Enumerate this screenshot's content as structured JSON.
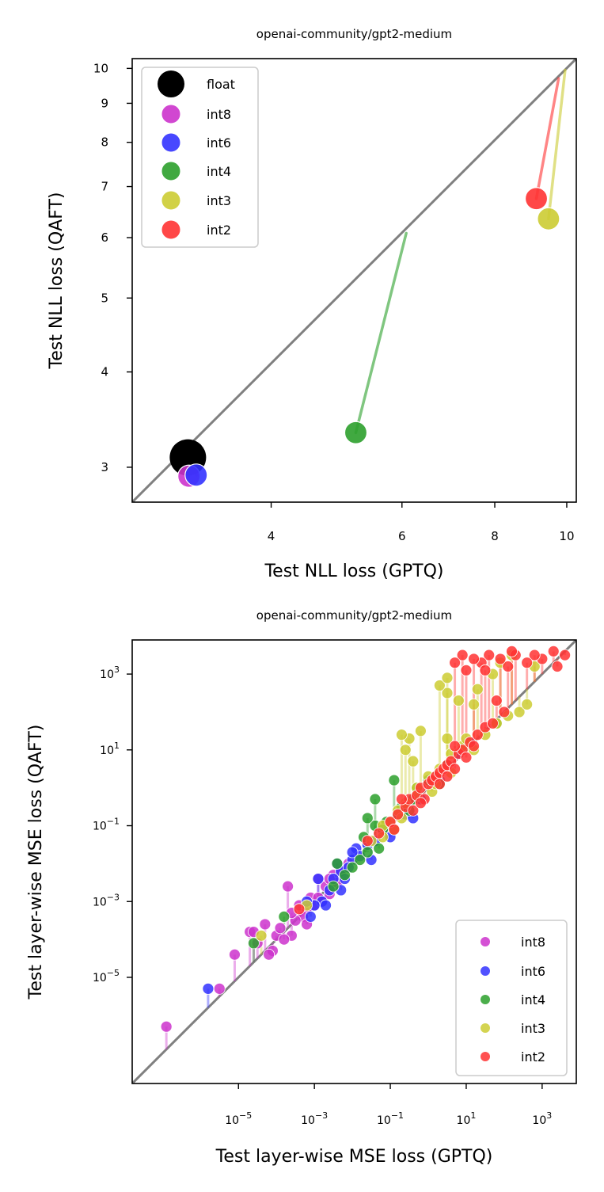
{
  "chart_data": [
    {
      "type": "scatter",
      "title": "openai-community/gpt2-medium",
      "xlabel": "Test NLL loss (GPTQ)",
      "ylabel": "Test NLL loss (QAFT)",
      "xscale": "log",
      "yscale": "log",
      "xlim": [
        2.6,
        10.3
      ],
      "ylim": [
        2.7,
        10.3
      ],
      "xticks": [
        {
          "value": 4,
          "label": "4"
        },
        {
          "value": 6,
          "label": "6"
        },
        {
          "value": 8,
          "label": "8"
        },
        {
          "value": 10,
          "label": "10"
        }
      ],
      "yticks": [
        {
          "value": 3,
          "label": "3"
        },
        {
          "value": 4,
          "label": "4"
        },
        {
          "value": 5,
          "label": "5"
        },
        {
          "value": 6,
          "label": "6"
        },
        {
          "value": 7,
          "label": "7"
        },
        {
          "value": 8,
          "label": "8"
        },
        {
          "value": 9,
          "label": "9"
        },
        {
          "value": 10,
          "label": "10"
        }
      ],
      "diagonal": true,
      "legend_position": "top-left",
      "series": [
        {
          "name": "float",
          "color": "#000000",
          "x0": 3.09,
          "y0": 3.09,
          "x": 3.09,
          "y": 3.09
        },
        {
          "name": "int8",
          "color": "#cc33cc",
          "x0": 3.09,
          "y0": 3.08,
          "x": 3.1,
          "y": 2.92
        },
        {
          "name": "int6",
          "color": "#3333ff",
          "x0": 3.17,
          "y0": 3.1,
          "x": 3.17,
          "y": 2.93
        },
        {
          "name": "int4",
          "color": "#2ca02c",
          "x0": 6.08,
          "y0": 6.08,
          "x": 5.2,
          "y": 3.33
        },
        {
          "name": "int3",
          "color": "#cccc33",
          "x0": 9.95,
          "y0": 9.95,
          "x": 9.45,
          "y": 6.35
        },
        {
          "name": "int2",
          "color": "#ff3333",
          "x0": 9.75,
          "y0": 9.7,
          "x": 9.1,
          "y": 6.75
        }
      ]
    },
    {
      "type": "scatter",
      "title": "openai-community/gpt2-medium",
      "xlabel": "Test layer-wise MSE loss (GPTQ)",
      "ylabel": "Test layer-wise MSE loss (QAFT)",
      "xscale": "log",
      "yscale": "log",
      "xlim_log10": [
        -7.8,
        3.9
      ],
      "ylim_log10": [
        -7.8,
        3.9
      ],
      "xticks": [
        {
          "value": -5,
          "base": "10",
          "exp": "−5"
        },
        {
          "value": -3,
          "base": "10",
          "exp": "−3"
        },
        {
          "value": -1,
          "base": "10",
          "exp": "−1"
        },
        {
          "value": 1,
          "base": "10",
          "exp": "1"
        },
        {
          "value": 3,
          "base": "10",
          "exp": "3"
        }
      ],
      "yticks": [
        {
          "value": -5,
          "base": "10",
          "exp": "−5"
        },
        {
          "value": -3,
          "base": "10",
          "exp": "−3"
        },
        {
          "value": -1,
          "base": "10",
          "exp": "−1"
        },
        {
          "value": 1,
          "base": "10",
          "exp": "1"
        },
        {
          "value": 3,
          "base": "10",
          "exp": "3"
        }
      ],
      "diagonal": true,
      "legend_position": "bottom-right",
      "note": "points given as log10 values; each point connected to its GPTQ position on the diagonal",
      "series": [
        {
          "name": "int8",
          "color": "#cc33cc",
          "points": [
            [
              -6.9,
              -6.3
            ],
            [
              -5.5,
              -5.3
            ],
            [
              -4.7,
              -3.8
            ],
            [
              -3.4,
              -3.1
            ],
            [
              -3.7,
              -2.6
            ],
            [
              -4.3,
              -3.6
            ],
            [
              -4.6,
              -3.8
            ],
            [
              -4.0,
              -3.9
            ],
            [
              -4.1,
              -4.3
            ],
            [
              -3.6,
              -3.9
            ],
            [
              -3.9,
              -3.7
            ],
            [
              -3.2,
              -3.2
            ],
            [
              -3.1,
              -2.9
            ],
            [
              -2.7,
              -2.6
            ],
            [
              -2.5,
              -2.3
            ],
            [
              -2.9,
              -2.9
            ],
            [
              -2.3,
              -2.2
            ],
            [
              -3.3,
              -3.4
            ],
            [
              -2.6,
              -2.8
            ],
            [
              -3.5,
              -3.5
            ],
            [
              -4.5,
              -4.1
            ],
            [
              -3.0,
              -3.1
            ],
            [
              -3.8,
              -4.0
            ],
            [
              -2.4,
              -2.5
            ],
            [
              -3.2,
              -3.6
            ],
            [
              -2.8,
              -3.0
            ],
            [
              -4.2,
              -4.4
            ],
            [
              -5.1,
              -4.4
            ],
            [
              -3.6,
              -3.3
            ],
            [
              -2.9,
              -2.4
            ],
            [
              -2.1,
              -2.0
            ],
            [
              -2.6,
              -2.4
            ]
          ]
        },
        {
          "name": "int6",
          "color": "#3333ff",
          "points": [
            [
              -5.8,
              -5.3
            ],
            [
              -2.9,
              -2.4
            ],
            [
              -2.6,
              -2.7
            ],
            [
              -2.3,
              -2.2
            ],
            [
              -2.0,
              -1.9
            ],
            [
              -1.9,
              -1.6
            ],
            [
              -1.6,
              -1.5
            ],
            [
              -2.4,
              -2.0
            ],
            [
              -2.8,
              -3.0
            ],
            [
              -3.0,
              -3.1
            ],
            [
              -2.5,
              -2.4
            ],
            [
              -2.1,
              -2.1
            ],
            [
              -1.8,
              -1.8
            ],
            [
              -1.4,
              -1.4
            ],
            [
              -1.2,
              -1.1
            ],
            [
              -0.6,
              -0.7
            ],
            [
              -0.2,
              -0.3
            ],
            [
              0.3,
              0.2
            ],
            [
              0.5,
              0.6
            ],
            [
              -2.2,
              -2.4
            ],
            [
              -2.7,
              -3.1
            ],
            [
              -3.2,
              -3.0
            ],
            [
              -1.5,
              -1.9
            ],
            [
              -1.0,
              -1.3
            ],
            [
              -0.4,
              -0.8
            ],
            [
              1.1,
              1.2
            ],
            [
              0.8,
              0.9
            ],
            [
              -2.3,
              -2.7
            ],
            [
              -3.1,
              -3.4
            ],
            [
              -2.0,
              -1.7
            ]
          ]
        },
        {
          "name": "int4",
          "color": "#2ca02c",
          "points": [
            [
              -4.6,
              -4.1
            ],
            [
              -1.4,
              -1.0
            ],
            [
              -1.7,
              -1.3
            ],
            [
              -1.1,
              -0.9
            ],
            [
              -0.8,
              -0.7
            ],
            [
              -0.4,
              -0.3
            ],
            [
              0.0,
              0.2
            ],
            [
              -0.9,
              0.2
            ],
            [
              -1.4,
              -0.3
            ],
            [
              -1.6,
              -0.8
            ],
            [
              -0.9,
              -1.1
            ],
            [
              -0.5,
              -0.6
            ],
            [
              -1.3,
              -1.6
            ],
            [
              -1.8,
              -1.9
            ],
            [
              -2.0,
              -2.1
            ],
            [
              -2.2,
              -2.3
            ],
            [
              -2.5,
              -2.6
            ],
            [
              1.8,
              1.7
            ],
            [
              1.0,
              1.1
            ],
            [
              0.5,
              0.6
            ],
            [
              0.2,
              0.3
            ],
            [
              -0.7,
              -0.5
            ],
            [
              -1.2,
              -1.1
            ],
            [
              -0.3,
              0.0
            ],
            [
              0.3,
              0.1
            ],
            [
              -3.8,
              -3.4
            ],
            [
              -2.4,
              -2.0
            ],
            [
              -1.6,
              -1.7
            ]
          ]
        },
        {
          "name": "int3",
          "color": "#cccc33",
          "points": [
            [
              -4.4,
              -3.9
            ],
            [
              -3.2,
              -3.1
            ],
            [
              -1.5,
              -1.4
            ],
            [
              -1.2,
              -1.0
            ],
            [
              -1.0,
              -0.9
            ],
            [
              -0.6,
              -0.4
            ],
            [
              -0.3,
              0.0
            ],
            [
              0.0,
              0.3
            ],
            [
              0.3,
              0.5
            ],
            [
              0.6,
              0.9
            ],
            [
              0.9,
              1.1
            ],
            [
              -0.2,
              1.5
            ],
            [
              -0.5,
              1.3
            ],
            [
              -0.6,
              1.0
            ],
            [
              -0.7,
              1.4
            ],
            [
              -0.4,
              0.7
            ],
            [
              0.1,
              0.2
            ],
            [
              0.5,
              1.3
            ],
            [
              1.0,
              1.3
            ],
            [
              1.5,
              1.4
            ],
            [
              1.8,
              1.7
            ],
            [
              2.1,
              1.9
            ],
            [
              2.4,
              2.0
            ],
            [
              2.6,
              2.2
            ],
            [
              1.2,
              2.2
            ],
            [
              0.8,
              2.3
            ],
            [
              0.5,
              2.5
            ],
            [
              0.3,
              2.7
            ],
            [
              0.5,
              2.9
            ],
            [
              1.3,
              2.6
            ],
            [
              1.7,
              3.0
            ],
            [
              1.9,
              3.3
            ],
            [
              2.2,
              3.5
            ],
            [
              2.8,
              3.2
            ],
            [
              -0.8,
              -0.6
            ],
            [
              -0.9,
              -1.1
            ],
            [
              -0.3,
              -0.2
            ],
            [
              0.1,
              -0.1
            ],
            [
              0.2,
              0.1
            ],
            [
              0.6,
              0.4
            ],
            [
              1.2,
              1.0
            ],
            [
              -1.2,
              -1.3
            ],
            [
              -0.7,
              -0.8
            ]
          ]
        },
        {
          "name": "int2",
          "color": "#ff3333",
          "points": [
            [
              -3.4,
              -3.2
            ],
            [
              -1.6,
              -1.4
            ],
            [
              -1.3,
              -1.2
            ],
            [
              -1.0,
              -0.9
            ],
            [
              -0.8,
              -0.7
            ],
            [
              -0.6,
              -0.5
            ],
            [
              -0.5,
              -0.3
            ],
            [
              -0.3,
              -0.2
            ],
            [
              -0.2,
              0.0
            ],
            [
              0.0,
              0.1
            ],
            [
              0.1,
              0.2
            ],
            [
              0.2,
              0.3
            ],
            [
              0.3,
              0.4
            ],
            [
              0.4,
              0.5
            ],
            [
              0.5,
              0.6
            ],
            [
              0.6,
              0.7
            ],
            [
              0.8,
              0.9
            ],
            [
              0.9,
              1.0
            ],
            [
              1.1,
              1.2
            ],
            [
              1.3,
              1.4
            ],
            [
              1.5,
              1.6
            ],
            [
              1.7,
              1.7
            ],
            [
              2.0,
              2.0
            ],
            [
              -0.4,
              -0.6
            ],
            [
              -0.1,
              -0.3
            ],
            [
              0.3,
              0.1
            ],
            [
              0.7,
              0.5
            ],
            [
              1.0,
              0.8
            ],
            [
              1.2,
              1.1
            ],
            [
              -0.9,
              -1.1
            ],
            [
              -0.7,
              -0.3
            ],
            [
              0.5,
              0.3
            ],
            [
              -0.2,
              -0.4
            ],
            [
              0.7,
              1.1
            ],
            [
              1.8,
              2.3
            ],
            [
              3.3,
              3.6
            ],
            [
              3.0,
              3.4
            ],
            [
              2.8,
              3.5
            ],
            [
              2.6,
              3.3
            ],
            [
              2.3,
              3.5
            ],
            [
              2.1,
              3.2
            ],
            [
              1.9,
              3.4
            ],
            [
              1.6,
              3.5
            ],
            [
              1.4,
              3.3
            ],
            [
              1.2,
              3.4
            ],
            [
              0.9,
              3.5
            ],
            [
              0.7,
              3.3
            ],
            [
              3.6,
              3.5
            ],
            [
              3.4,
              3.2
            ],
            [
              2.2,
              3.6
            ],
            [
              1.0,
              3.1
            ],
            [
              1.5,
              3.1
            ]
          ]
        }
      ]
    }
  ]
}
